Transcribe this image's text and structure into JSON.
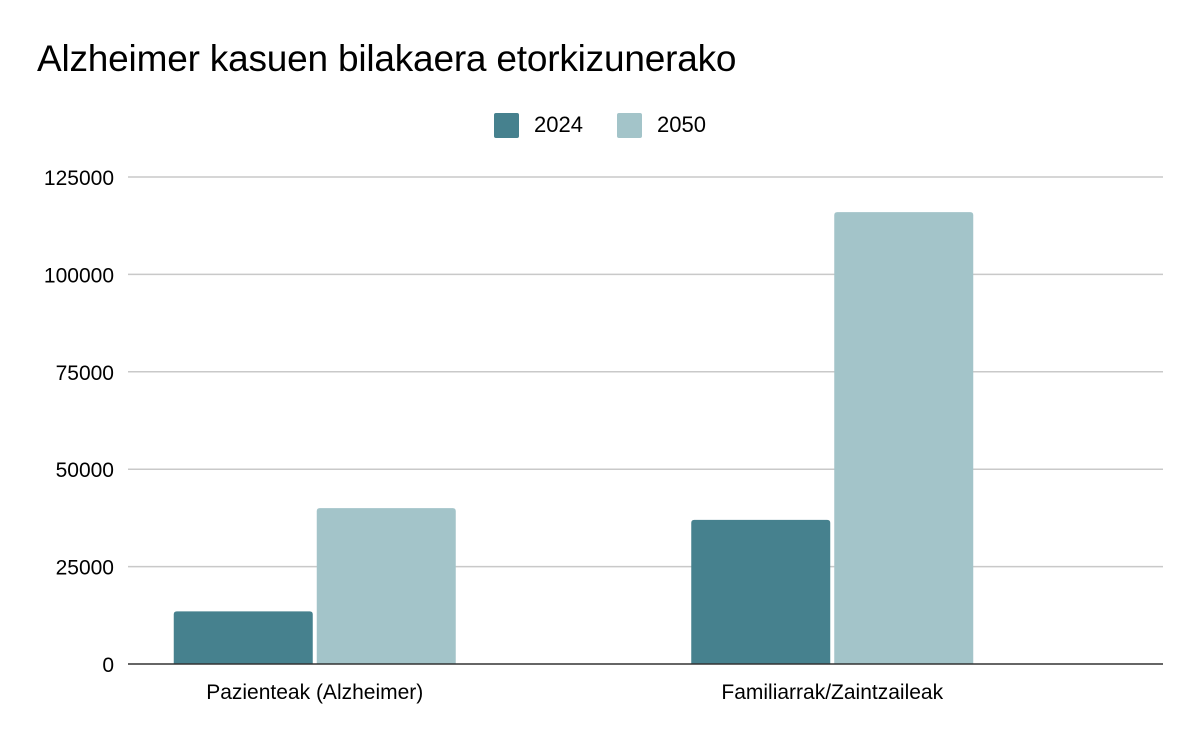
{
  "chart_data": {
    "type": "bar",
    "title": "Alzheimer kasuen bilakaera etorkizunerako",
    "categories": [
      "Pazienteak (Alzheimer)",
      "Familiarrak/Zaintzaileak"
    ],
    "series": [
      {
        "name": "2024",
        "color": "#46818e",
        "values": [
          13500,
          37000
        ]
      },
      {
        "name": "2050",
        "color": "#a3c4c9",
        "values": [
          40000,
          116000
        ]
      }
    ],
    "yticks": [
      "0",
      "25000",
      "50000",
      "75000",
      "100000",
      "125000"
    ],
    "ylim": [
      0,
      125000
    ],
    "grid": true,
    "legend_position": "top-center",
    "xlabel": "",
    "ylabel": ""
  }
}
